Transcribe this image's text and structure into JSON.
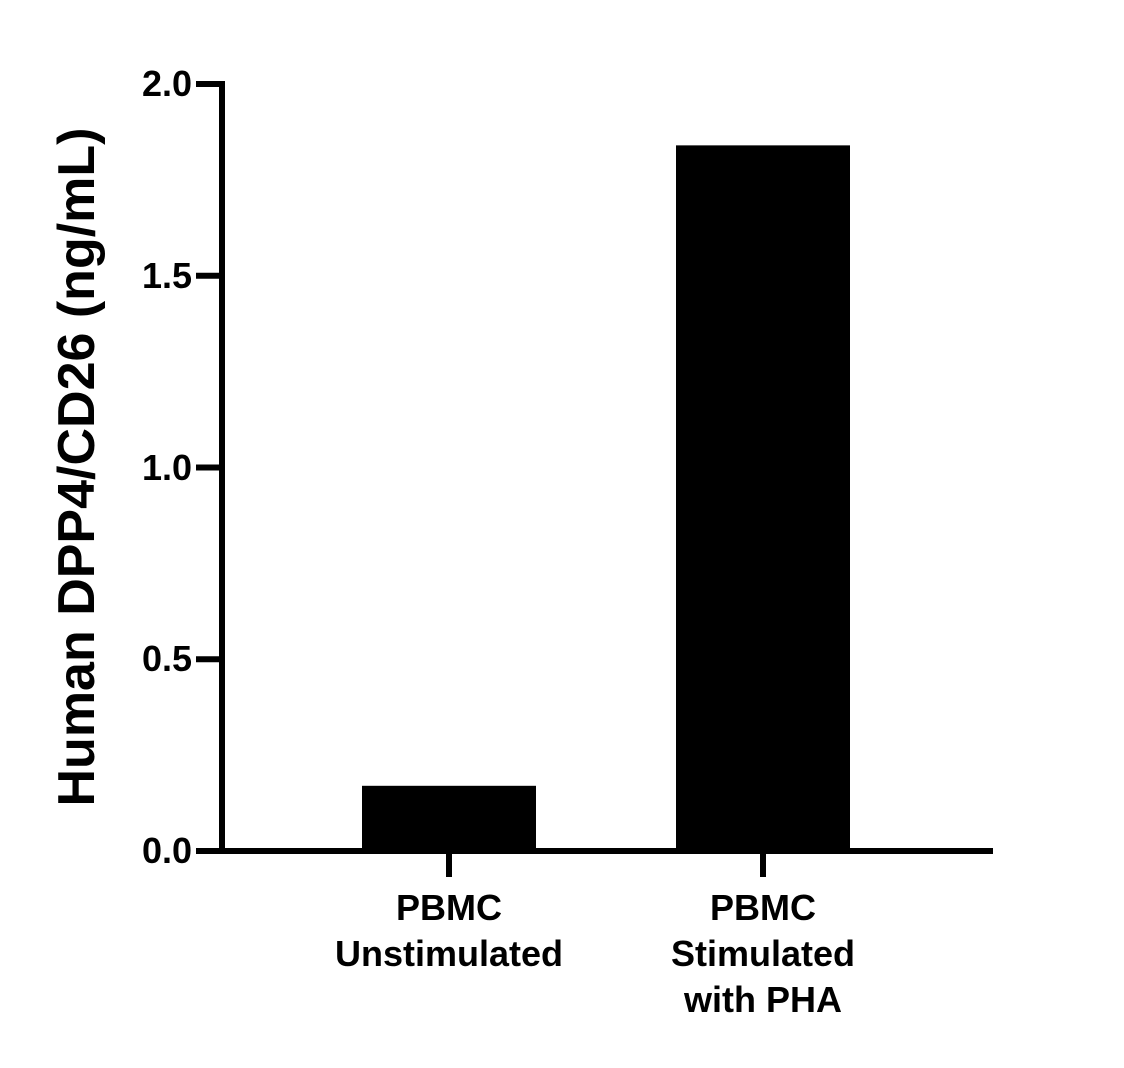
{
  "chart_data": {
    "type": "bar",
    "title": "",
    "xlabel": "",
    "ylabel": "Human DPP4/CD26 (ng/mL)",
    "categories": [
      "PBMC Unstimulated",
      "PBMC Stimulated with PHA"
    ],
    "category_lines": [
      [
        "PBMC",
        "Unstimulated"
      ],
      [
        "PBMC",
        "Stimulated",
        "with PHA"
      ]
    ],
    "values": [
      0.17,
      1.84
    ],
    "ylim": [
      0,
      2.0
    ],
    "yticks": [
      "0.0",
      "0.5",
      "1.0",
      "1.5",
      "2.0"
    ],
    "ytick_values": [
      0.0,
      0.5,
      1.0,
      1.5,
      2.0
    ],
    "grid": false,
    "legend": null,
    "bar_color": "#000000"
  }
}
